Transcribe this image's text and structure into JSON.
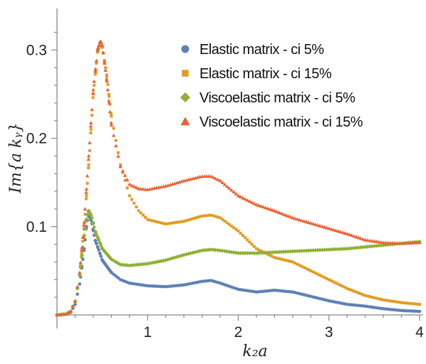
{
  "chart_data": {
    "type": "scatter",
    "xlabel": "k₂a",
    "ylabel": "Im{a kᵧ}",
    "xlim": [
      0,
      4
    ],
    "ylim": [
      0,
      0.33
    ],
    "x_ticks": [
      {
        "value": 1,
        "label": "1"
      },
      {
        "value": 2,
        "label": "2"
      },
      {
        "value": 3,
        "label": "3"
      },
      {
        "value": 4,
        "label": "4"
      }
    ],
    "y_ticks": [
      {
        "value": 0.1,
        "label": "0.1"
      },
      {
        "value": 0.2,
        "label": "0.2"
      },
      {
        "value": 0.3,
        "label": "0.3"
      }
    ],
    "grid": false,
    "legend_position": "top-right",
    "series": [
      {
        "name": "Elastic matrix - ci 5%",
        "color": "#5e81b5",
        "marker": "circle",
        "points": [
          [
            0,
            0
          ],
          [
            0.1,
            0.001
          ],
          [
            0.15,
            0.003
          ],
          [
            0.2,
            0.012
          ],
          [
            0.25,
            0.035
          ],
          [
            0.3,
            0.075
          ],
          [
            0.33,
            0.105
          ],
          [
            0.35,
            0.113
          ],
          [
            0.38,
            0.106
          ],
          [
            0.42,
            0.085
          ],
          [
            0.5,
            0.062
          ],
          [
            0.6,
            0.048
          ],
          [
            0.7,
            0.04
          ],
          [
            0.8,
            0.036
          ],
          [
            1.0,
            0.033
          ],
          [
            1.2,
            0.032
          ],
          [
            1.4,
            0.034
          ],
          [
            1.6,
            0.038
          ],
          [
            1.7,
            0.039
          ],
          [
            1.8,
            0.036
          ],
          [
            2.0,
            0.029
          ],
          [
            2.2,
            0.026
          ],
          [
            2.4,
            0.028
          ],
          [
            2.6,
            0.026
          ],
          [
            2.8,
            0.021
          ],
          [
            3.0,
            0.016
          ],
          [
            3.2,
            0.012
          ],
          [
            3.4,
            0.01
          ],
          [
            3.6,
            0.007
          ],
          [
            3.8,
            0.005
          ],
          [
            4.0,
            0.004
          ]
        ]
      },
      {
        "name": "Elastic matrix - ci 15%",
        "color": "#e19c24",
        "marker": "square",
        "points": [
          [
            0,
            0
          ],
          [
            0.1,
            0.001
          ],
          [
            0.15,
            0.004
          ],
          [
            0.2,
            0.015
          ],
          [
            0.25,
            0.045
          ],
          [
            0.3,
            0.1
          ],
          [
            0.35,
            0.17
          ],
          [
            0.4,
            0.25
          ],
          [
            0.45,
            0.3
          ],
          [
            0.48,
            0.307
          ],
          [
            0.5,
            0.303
          ],
          [
            0.55,
            0.27
          ],
          [
            0.6,
            0.225
          ],
          [
            0.7,
            0.17
          ],
          [
            0.8,
            0.135
          ],
          [
            0.9,
            0.118
          ],
          [
            1.0,
            0.108
          ],
          [
            1.2,
            0.103
          ],
          [
            1.4,
            0.106
          ],
          [
            1.6,
            0.112
          ],
          [
            1.7,
            0.113
          ],
          [
            1.8,
            0.11
          ],
          [
            2.0,
            0.095
          ],
          [
            2.2,
            0.075
          ],
          [
            2.4,
            0.065
          ],
          [
            2.6,
            0.06
          ],
          [
            2.8,
            0.05
          ],
          [
            3.0,
            0.04
          ],
          [
            3.2,
            0.03
          ],
          [
            3.4,
            0.022
          ],
          [
            3.6,
            0.017
          ],
          [
            3.8,
            0.014
          ],
          [
            4.0,
            0.012
          ]
        ]
      },
      {
        "name": "Viscoelastic matrix - ci 5%",
        "color": "#8fb032",
        "marker": "diamond",
        "points": [
          [
            0,
            0
          ],
          [
            0.1,
            0.001
          ],
          [
            0.15,
            0.004
          ],
          [
            0.2,
            0.015
          ],
          [
            0.25,
            0.045
          ],
          [
            0.3,
            0.09
          ],
          [
            0.33,
            0.112
          ],
          [
            0.35,
            0.118
          ],
          [
            0.38,
            0.112
          ],
          [
            0.42,
            0.095
          ],
          [
            0.5,
            0.075
          ],
          [
            0.6,
            0.063
          ],
          [
            0.7,
            0.057
          ],
          [
            0.8,
            0.056
          ],
          [
            1.0,
            0.058
          ],
          [
            1.2,
            0.062
          ],
          [
            1.4,
            0.068
          ],
          [
            1.6,
            0.073
          ],
          [
            1.7,
            0.074
          ],
          [
            1.8,
            0.073
          ],
          [
            2.0,
            0.07
          ],
          [
            2.2,
            0.07
          ],
          [
            2.4,
            0.071
          ],
          [
            2.6,
            0.072
          ],
          [
            2.8,
            0.073
          ],
          [
            3.0,
            0.074
          ],
          [
            3.2,
            0.075
          ],
          [
            3.4,
            0.077
          ],
          [
            3.6,
            0.079
          ],
          [
            3.8,
            0.081
          ],
          [
            4.0,
            0.083
          ]
        ]
      },
      {
        "name": "Viscoelastic matrix - ci 15%",
        "color": "#eb6235",
        "marker": "triangle",
        "points": [
          [
            0,
            0
          ],
          [
            0.1,
            0.001
          ],
          [
            0.15,
            0.004
          ],
          [
            0.2,
            0.016
          ],
          [
            0.25,
            0.048
          ],
          [
            0.3,
            0.105
          ],
          [
            0.35,
            0.18
          ],
          [
            0.4,
            0.255
          ],
          [
            0.45,
            0.302
          ],
          [
            0.48,
            0.311
          ],
          [
            0.5,
            0.305
          ],
          [
            0.55,
            0.265
          ],
          [
            0.6,
            0.215
          ],
          [
            0.7,
            0.168
          ],
          [
            0.8,
            0.148
          ],
          [
            0.9,
            0.143
          ],
          [
            1.0,
            0.142
          ],
          [
            1.2,
            0.146
          ],
          [
            1.4,
            0.152
          ],
          [
            1.6,
            0.157
          ],
          [
            1.7,
            0.157
          ],
          [
            1.8,
            0.152
          ],
          [
            2.0,
            0.135
          ],
          [
            2.2,
            0.125
          ],
          [
            2.4,
            0.118
          ],
          [
            2.6,
            0.11
          ],
          [
            2.8,
            0.104
          ],
          [
            3.0,
            0.098
          ],
          [
            3.2,
            0.092
          ],
          [
            3.4,
            0.085
          ],
          [
            3.6,
            0.082
          ],
          [
            3.8,
            0.081
          ],
          [
            4.0,
            0.082
          ]
        ]
      }
    ]
  }
}
